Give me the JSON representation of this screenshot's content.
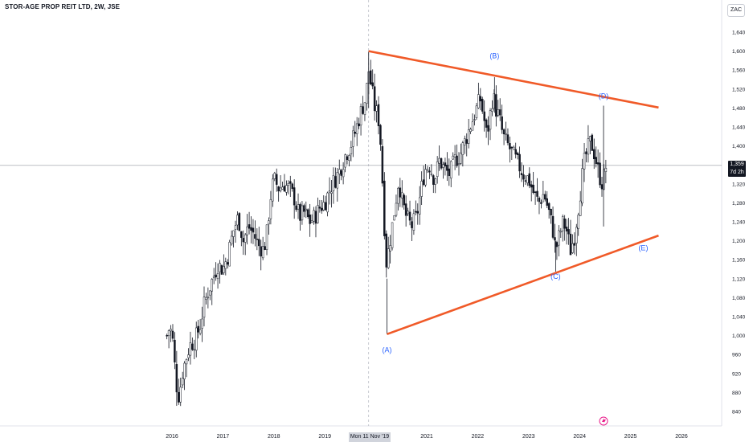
{
  "title": "STOR-AGE PROP REIT LTD, 2W, JSE",
  "currency_badge": "ZAC",
  "price_badge": {
    "price": "1,359",
    "countdown": "7d 2h"
  },
  "crosshair_date": "Mon 11 Nov '19",
  "colors": {
    "candle": "#131722",
    "trendline": "#f05a28",
    "wave_label": "#2962ff",
    "price_line": "#9598a1",
    "axis_text": "#131722",
    "flash_icon": "#e91e8c"
  },
  "chart_data": {
    "type": "candlestick",
    "interval": "2W",
    "ylim": [
      820,
      1680
    ],
    "x_range_years": [
      2015.6,
      2026.7
    ],
    "y_ticks": [
      "840",
      "880",
      "920",
      "960",
      "1,000",
      "1,040",
      "1,080",
      "1,120",
      "1,160",
      "1,200",
      "1,240",
      "1,280",
      "1,320",
      "1,360",
      "1,400",
      "1,440",
      "1,480",
      "1,520",
      "1,560",
      "1,600",
      "1,640"
    ],
    "y_tick_values": [
      840,
      880,
      920,
      960,
      1000,
      1040,
      1080,
      1120,
      1160,
      1200,
      1240,
      1280,
      1320,
      1360,
      1400,
      1440,
      1480,
      1520,
      1560,
      1600,
      1640
    ],
    "x_ticks": [
      "2016",
      "2017",
      "2018",
      "2019",
      "2021",
      "2022",
      "2023",
      "2024",
      "2025",
      "2026"
    ],
    "x_tick_values": [
      2016.0,
      2017.0,
      2018.0,
      2019.0,
      2021.0,
      2022.0,
      2023.0,
      2024.0,
      2025.0,
      2026.0
    ],
    "current_price": 1359,
    "crosshair_x": 2019.86,
    "upper_trendline": [
      [
        2019.86,
        1600
      ],
      [
        2025.55,
        1481
      ]
    ],
    "lower_trendline": [
      [
        2020.22,
        1003
      ],
      [
        2025.55,
        1211
      ]
    ],
    "wave_labels": [
      {
        "text": "(A)",
        "x": 2020.22,
        "y": 965
      },
      {
        "text": "(B)",
        "x": 2022.33,
        "y": 1585
      },
      {
        "text": "(C)",
        "x": 2023.53,
        "y": 1120
      },
      {
        "text": "(D)",
        "x": 2024.47,
        "y": 1500
      },
      {
        "text": "(E)",
        "x": 2025.25,
        "y": 1180
      }
    ],
    "price_path": [
      [
        2015.9,
        1000
      ],
      [
        2015.96,
        1020
      ],
      [
        2016.02,
        985
      ],
      [
        2016.08,
        900
      ],
      [
        2016.14,
        870
      ],
      [
        2016.2,
        920
      ],
      [
        2016.27,
        950
      ],
      [
        2016.35,
        980
      ],
      [
        2016.45,
        990
      ],
      [
        2016.55,
        1020
      ],
      [
        2016.62,
        1060
      ],
      [
        2016.7,
        1090
      ],
      [
        2016.8,
        1120
      ],
      [
        2016.9,
        1150
      ],
      [
        2017.0,
        1140
      ],
      [
        2017.1,
        1170
      ],
      [
        2017.2,
        1220
      ],
      [
        2017.3,
        1250
      ],
      [
        2017.4,
        1200
      ],
      [
        2017.5,
        1230
      ],
      [
        2017.6,
        1215
      ],
      [
        2017.7,
        1190
      ],
      [
        2017.8,
        1180
      ],
      [
        2017.87,
        1220
      ],
      [
        2017.93,
        1290
      ],
      [
        2018.0,
        1330
      ],
      [
        2018.1,
        1310
      ],
      [
        2018.2,
        1320
      ],
      [
        2018.3,
        1310
      ],
      [
        2018.4,
        1290
      ],
      [
        2018.5,
        1250
      ],
      [
        2018.6,
        1260
      ],
      [
        2018.7,
        1240
      ],
      [
        2018.8,
        1250
      ],
      [
        2018.9,
        1270
      ],
      [
        2019.0,
        1280
      ],
      [
        2019.1,
        1310
      ],
      [
        2019.2,
        1330
      ],
      [
        2019.3,
        1350
      ],
      [
        2019.4,
        1380
      ],
      [
        2019.5,
        1400
      ],
      [
        2019.6,
        1430
      ],
      [
        2019.7,
        1470
      ],
      [
        2019.8,
        1500
      ],
      [
        2019.86,
        1560
      ],
      [
        2019.92,
        1520
      ],
      [
        2019.98,
        1480
      ],
      [
        2020.05,
        1460
      ],
      [
        2020.1,
        1400
      ],
      [
        2020.15,
        1280
      ],
      [
        2020.2,
        1150
      ],
      [
        2020.25,
        1180
      ],
      [
        2020.32,
        1230
      ],
      [
        2020.4,
        1290
      ],
      [
        2020.45,
        1330
      ],
      [
        2020.52,
        1280
      ],
      [
        2020.6,
        1250
      ],
      [
        2020.7,
        1230
      ],
      [
        2020.8,
        1250
      ],
      [
        2020.88,
        1300
      ],
      [
        2020.96,
        1350
      ],
      [
        2021.05,
        1360
      ],
      [
        2021.15,
        1330
      ],
      [
        2021.25,
        1370
      ],
      [
        2021.35,
        1350
      ],
      [
        2021.45,
        1340
      ],
      [
        2021.55,
        1370
      ],
      [
        2021.65,
        1380
      ],
      [
        2021.75,
        1410
      ],
      [
        2021.85,
        1440
      ],
      [
        2021.95,
        1470
      ],
      [
        2022.05,
        1500
      ],
      [
        2022.12,
        1460
      ],
      [
        2022.18,
        1420
      ],
      [
        2022.25,
        1470
      ],
      [
        2022.3,
        1510
      ],
      [
        2022.35,
        1480
      ],
      [
        2022.42,
        1460
      ],
      [
        2022.5,
        1420
      ],
      [
        2022.6,
        1400
      ],
      [
        2022.7,
        1380
      ],
      [
        2022.8,
        1360
      ],
      [
        2022.9,
        1340
      ],
      [
        2023.0,
        1330
      ],
      [
        2023.1,
        1300
      ],
      [
        2023.2,
        1280
      ],
      [
        2023.3,
        1300
      ],
      [
        2023.4,
        1260
      ],
      [
        2023.48,
        1220
      ],
      [
        2023.53,
        1180
      ],
      [
        2023.6,
        1210
      ],
      [
        2023.68,
        1240
      ],
      [
        2023.75,
        1220
      ],
      [
        2023.82,
        1180
      ],
      [
        2023.9,
        1210
      ],
      [
        2024.0,
        1290
      ],
      [
        2024.08,
        1360
      ],
      [
        2024.15,
        1390
      ],
      [
        2024.22,
        1410
      ],
      [
        2024.3,
        1380
      ],
      [
        2024.38,
        1340
      ],
      [
        2024.45,
        1320
      ],
      [
        2024.52,
        1359
      ]
    ]
  }
}
